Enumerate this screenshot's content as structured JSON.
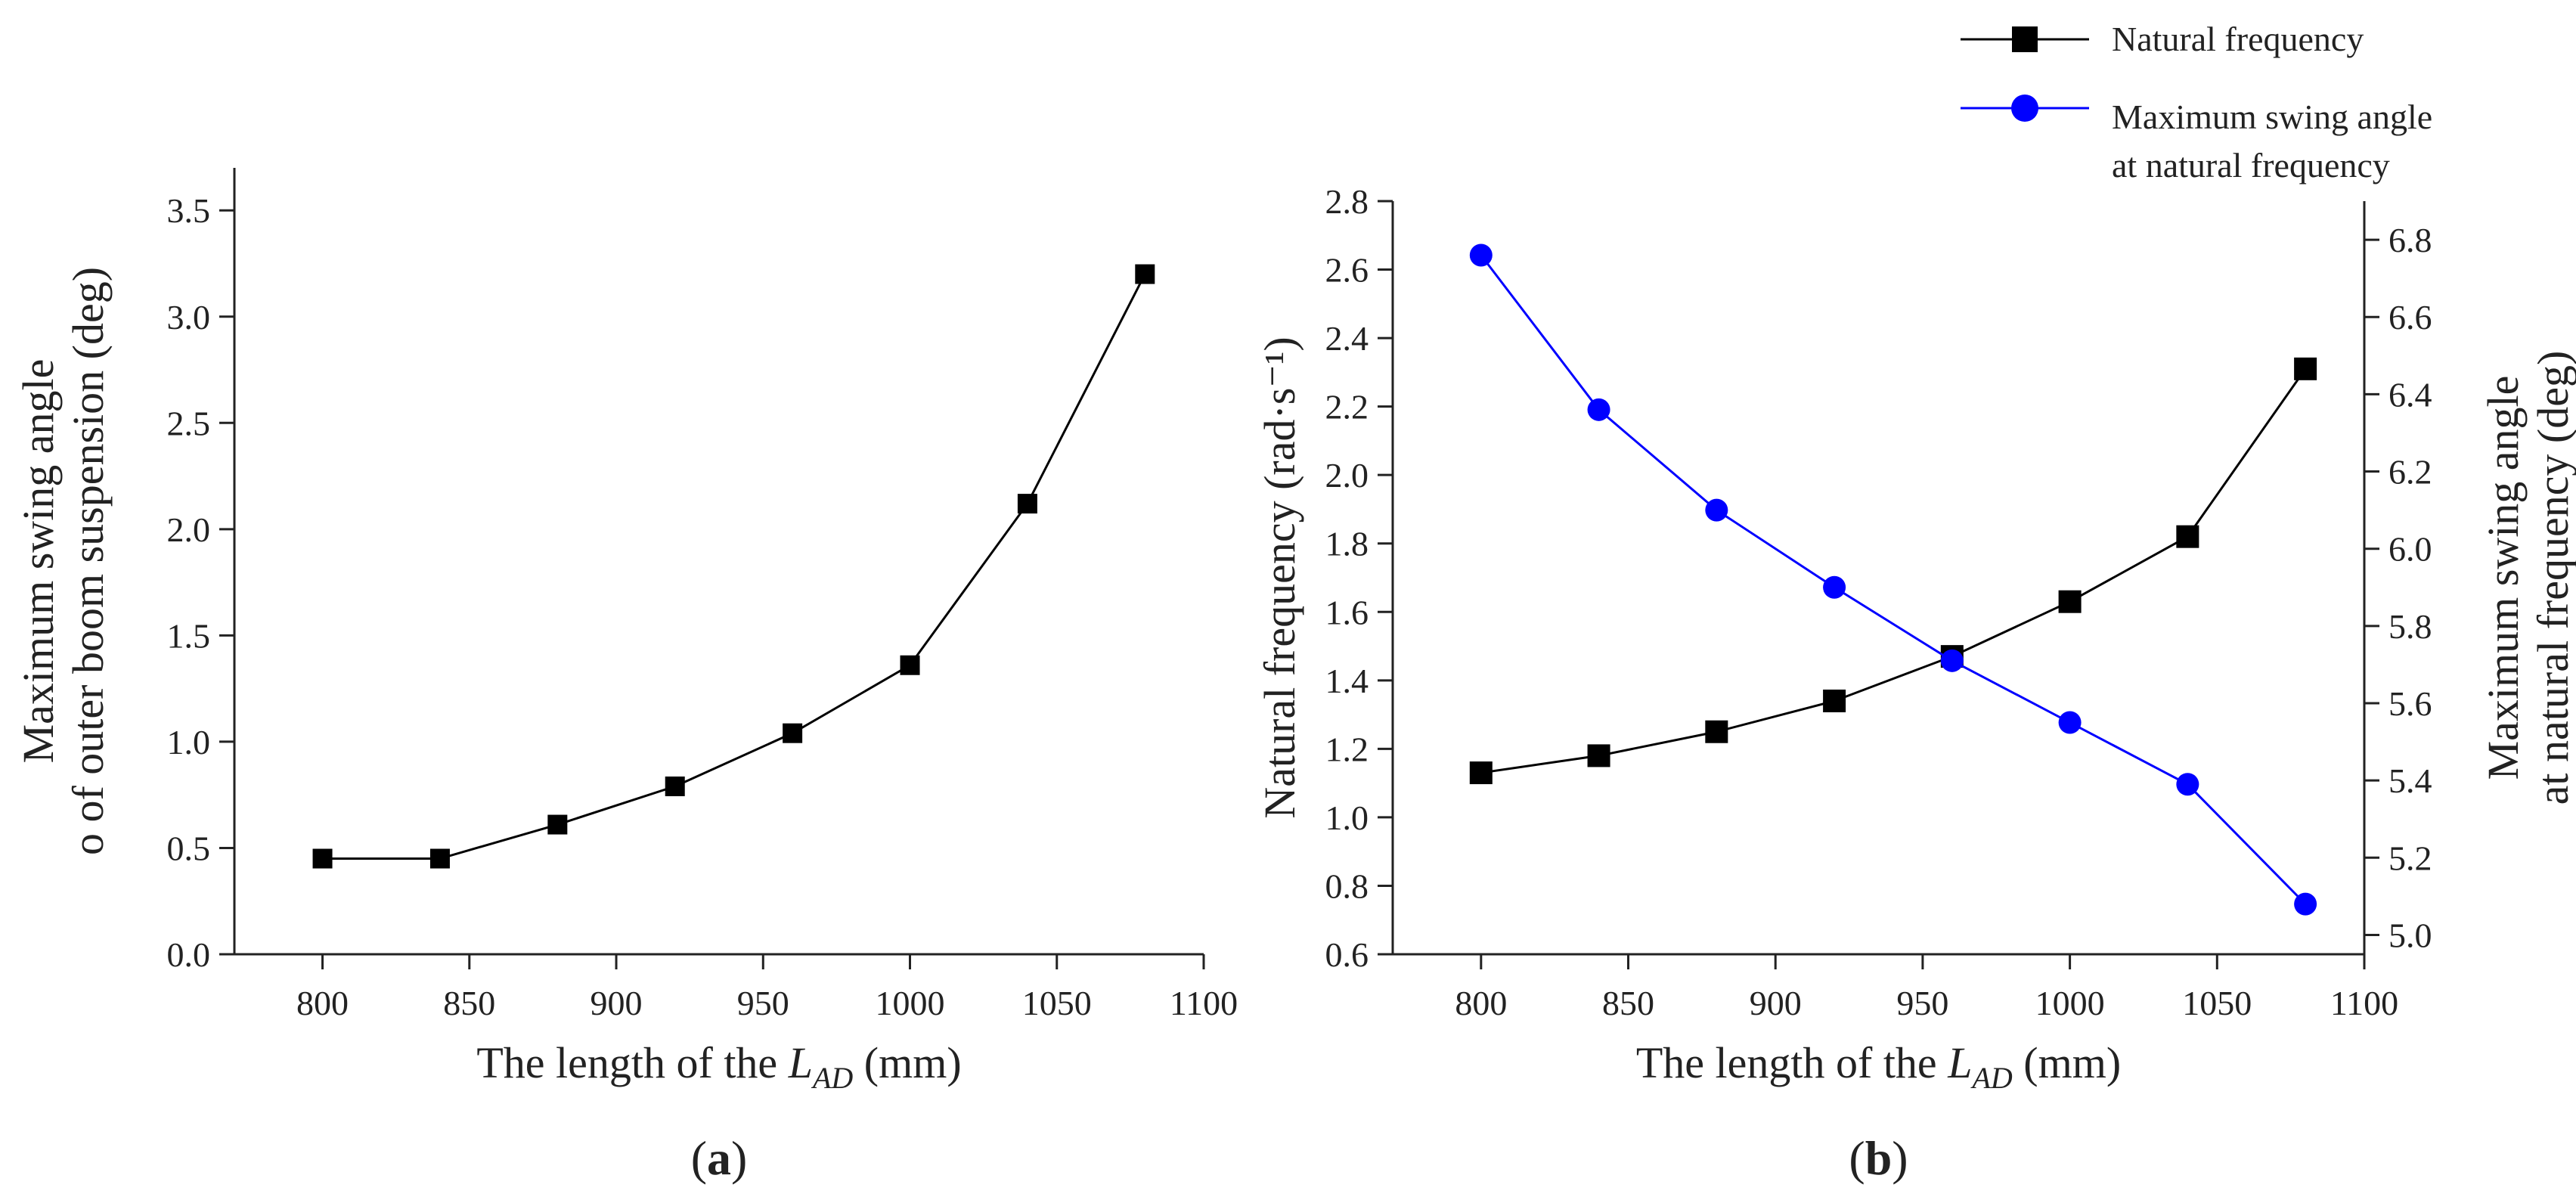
{
  "chart_data": [
    {
      "type": "line",
      "panel_label": "a",
      "xlabel": {
        "prefix": "The length of the ",
        "symbol": "L",
        "subscript": "AD",
        "suffix": " (mm)"
      },
      "ylabel_lines": [
        "Maximum swing angle",
        "o of outer boom suspension (deg)"
      ],
      "xlim": [
        770,
        1100
      ],
      "ylim": [
        0,
        3.7
      ],
      "xticks": [
        "800",
        "850",
        "900",
        "950",
        "1000",
        "1050",
        "1100"
      ],
      "yticks": [
        "0.0",
        "0.5",
        "1.0",
        "1.5",
        "2.0",
        "2.5",
        "3.0",
        "3.5"
      ],
      "grid": false,
      "series": [
        {
          "color": "#000000",
          "marker": "square",
          "x": [
            800,
            840,
            880,
            920,
            960,
            1000,
            1040,
            1080
          ],
          "y": [
            0.45,
            0.45,
            0.61,
            0.79,
            1.04,
            1.36,
            2.12,
            3.2
          ]
        }
      ]
    },
    {
      "type": "line",
      "panel_label": "b",
      "xlabel": {
        "prefix": "The length of the ",
        "symbol": "L",
        "subscript": "AD",
        "suffix": " (mm)"
      },
      "ylabel_left": "Natural frequency (rad·s⁻¹)",
      "ylabel_right_lines": [
        "Maximum swing angle",
        "at natural frequency (deg)"
      ],
      "xlim": [
        770,
        1100
      ],
      "ylim_left": [
        0.6,
        2.8
      ],
      "ylim_right": [
        4.95,
        6.9
      ],
      "xticks": [
        "800",
        "850",
        "900",
        "950",
        "1000",
        "1050",
        "1100"
      ],
      "yticks_left": [
        "0.6",
        "0.8",
        "1.0",
        "1.2",
        "1.4",
        "1.6",
        "1.8",
        "2.0",
        "2.2",
        "2.4",
        "2.6",
        "2.8"
      ],
      "yticks_right": [
        "5.0",
        "5.2",
        "5.4",
        "5.6",
        "5.8",
        "6.0",
        "6.2",
        "6.4",
        "6.6",
        "6.8"
      ],
      "grid": false,
      "legend_position": "top-right, above plot",
      "series": [
        {
          "name": "Natural frequency",
          "axis": "left",
          "color": "#000000",
          "marker": "square",
          "x": [
            800,
            840,
            880,
            920,
            960,
            1000,
            1040,
            1080
          ],
          "y": [
            1.13,
            1.18,
            1.25,
            1.34,
            1.47,
            1.63,
            1.82,
            2.31
          ]
        },
        {
          "name_lines": [
            "Maximum swing angle",
            "at natural frequency"
          ],
          "axis": "right",
          "color": "#0000ff",
          "marker": "circle",
          "x": [
            800,
            840,
            880,
            920,
            960,
            1000,
            1040,
            1080
          ],
          "y": [
            6.76,
            6.36,
            6.1,
            5.9,
            5.71,
            5.55,
            5.39,
            5.08
          ]
        }
      ]
    }
  ]
}
